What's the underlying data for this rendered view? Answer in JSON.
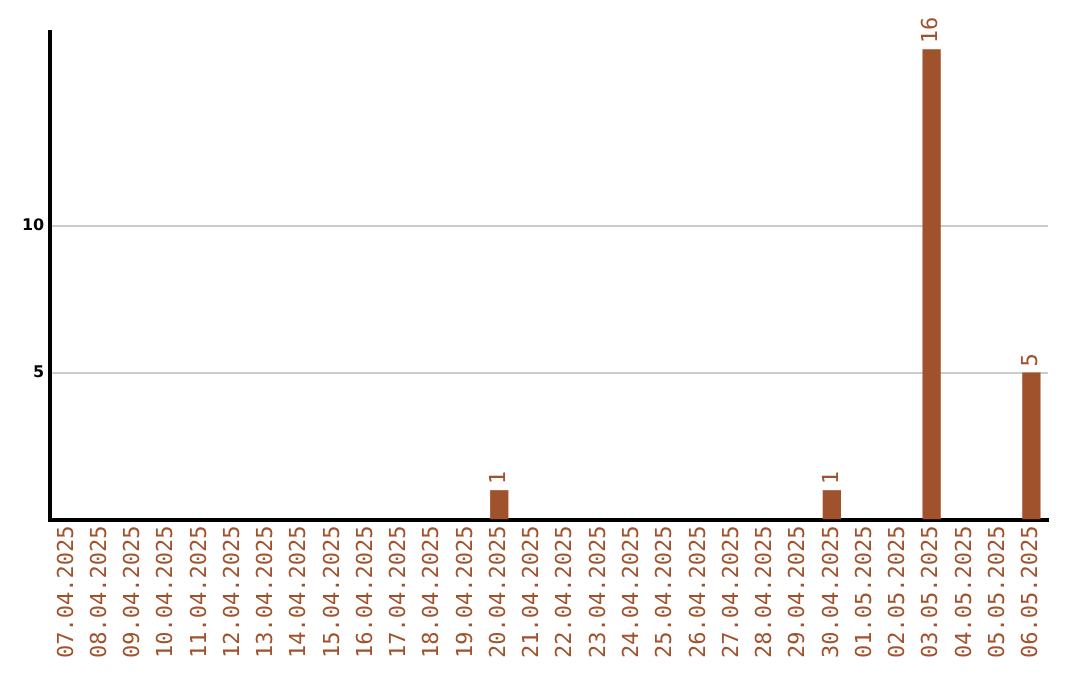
{
  "chart_data": {
    "type": "bar",
    "categories": [
      "07.04.2025",
      "08.04.2025",
      "09.04.2025",
      "10.04.2025",
      "11.04.2025",
      "12.04.2025",
      "13.04.2025",
      "14.04.2025",
      "15.04.2025",
      "16.04.2025",
      "17.04.2025",
      "18.04.2025",
      "19.04.2025",
      "20.04.2025",
      "21.04.2025",
      "22.04.2025",
      "23.04.2025",
      "24.04.2025",
      "25.04.2025",
      "26.04.2025",
      "27.04.2025",
      "28.04.2025",
      "29.04.2025",
      "30.04.2025",
      "01.05.2025",
      "02.05.2025",
      "03.05.2025",
      "04.05.2025",
      "05.05.2025",
      "06.05.2025"
    ],
    "values": [
      0,
      0,
      0,
      0,
      0,
      0,
      0,
      0,
      0,
      0,
      0,
      0,
      0,
      1,
      0,
      0,
      0,
      0,
      0,
      0,
      0,
      0,
      0,
      1,
      0,
      0,
      16,
      0,
      0,
      5
    ],
    "value_labels": [
      null,
      null,
      null,
      null,
      null,
      null,
      null,
      null,
      null,
      null,
      null,
      null,
      null,
      "1",
      null,
      null,
      null,
      null,
      null,
      null,
      null,
      null,
      null,
      "1",
      null,
      null,
      "16",
      null,
      null,
      "5"
    ],
    "color": "#a0522d",
    "ylim": [
      0,
      16.6
    ],
    "yticks": [
      5,
      10
    ],
    "grid": "y"
  }
}
